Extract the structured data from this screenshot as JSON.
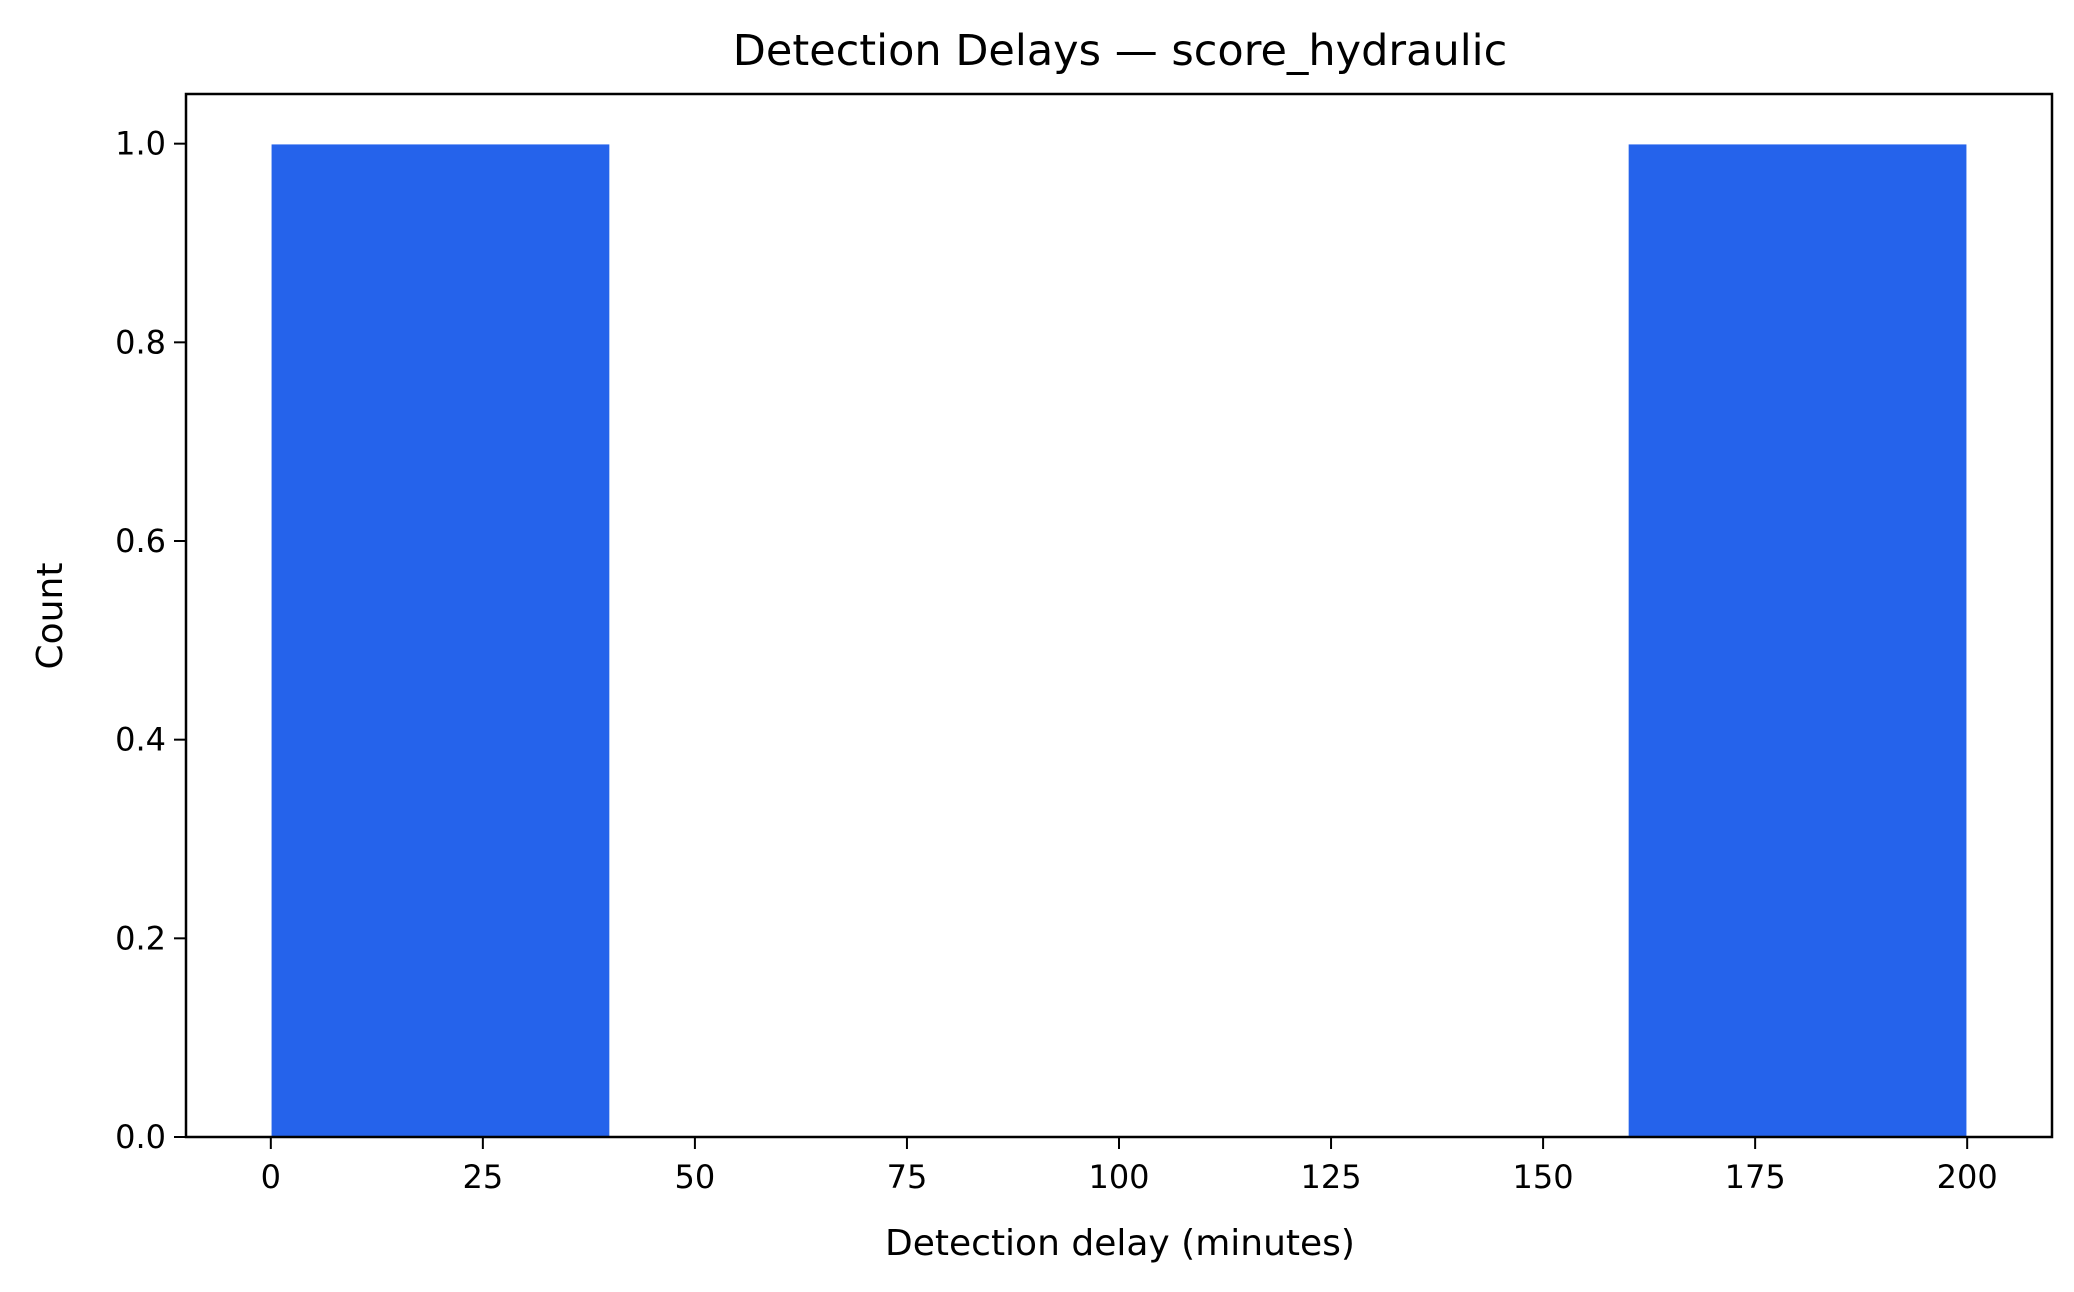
{
  "chart_data": {
    "type": "bar",
    "subtype": "histogram",
    "title": "Detection Delays — score_hydraulic",
    "xlabel": "Detection delay (minutes)",
    "ylabel": "Count",
    "xlim": [
      -10,
      210
    ],
    "ylim": [
      0,
      1.05
    ],
    "x_ticks": [
      0,
      25,
      50,
      75,
      100,
      125,
      150,
      175,
      200
    ],
    "y_ticks": [
      0.0,
      0.2,
      0.4,
      0.6,
      0.8,
      1.0
    ],
    "x_tick_labels": [
      "0",
      "25",
      "50",
      "75",
      "100",
      "125",
      "150",
      "175",
      "200"
    ],
    "y_tick_labels": [
      "0.0",
      "0.2",
      "0.4",
      "0.6",
      "0.8",
      "1.0"
    ],
    "bins": [
      {
        "start": 0,
        "end": 40,
        "count": 1
      },
      {
        "start": 40,
        "end": 80,
        "count": 0
      },
      {
        "start": 80,
        "end": 120,
        "count": 0
      },
      {
        "start": 120,
        "end": 160,
        "count": 0
      },
      {
        "start": 160,
        "end": 200,
        "count": 1
      }
    ],
    "bar_color": "#2563eb",
    "grid": false,
    "legend": "none"
  }
}
